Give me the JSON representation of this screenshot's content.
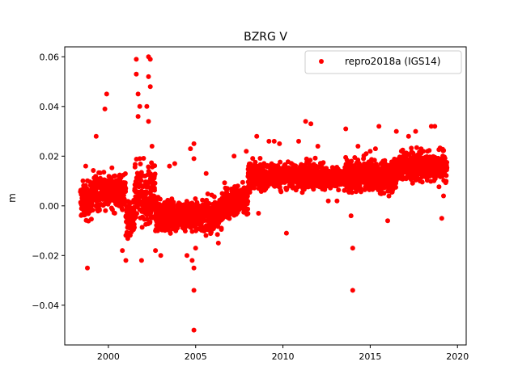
{
  "chart_data": {
    "type": "scatter",
    "title": "BZRG V",
    "xlabel": "",
    "ylabel": "m",
    "xlim": [
      1997.5,
      2020.5
    ],
    "ylim": [
      -0.056,
      0.064
    ],
    "xticks": [
      2000,
      2005,
      2010,
      2015,
      2020
    ],
    "yticks": [
      -0.04,
      -0.02,
      0.0,
      0.02,
      0.04,
      0.06
    ],
    "xtick_labels": [
      "2000",
      "2005",
      "2010",
      "2015",
      "2020"
    ],
    "ytick_labels": [
      "−0.04",
      "−0.02",
      "0.00",
      "0.02",
      "0.04",
      "0.06"
    ],
    "grid": false,
    "legend": {
      "position": "top-right",
      "entries": [
        "repro2018a (IGS14)"
      ]
    },
    "series": [
      {
        "name": "repro2018a (IGS14)",
        "color": "#ff0000",
        "marker": "circle",
        "trend_segments": [
          {
            "x": [
              1998.4,
              1999.1
            ],
            "mean": 0.002,
            "spread": 0.007
          },
          {
            "x": [
              1999.1,
              2001.0
            ],
            "mean": 0.006,
            "spread": 0.007
          },
          {
            "x": [
              2001.0,
              2001.5
            ],
            "mean": -0.006,
            "spread": 0.007
          },
          {
            "x": [
              2001.5,
              2002.7
            ],
            "mean": 0.004,
            "spread": 0.012
          },
          {
            "x": [
              2002.7,
              2004.0
            ],
            "mean": -0.004,
            "spread": 0.006
          },
          {
            "x": [
              2004.0,
              2006.5
            ],
            "mean": -0.004,
            "spread": 0.006
          },
          {
            "x": [
              2006.5,
              2008.0
            ],
            "mean": 0.002,
            "spread": 0.006
          },
          {
            "x": [
              2008.0,
              2012.5
            ],
            "mean": 0.012,
            "spread": 0.005
          },
          {
            "x": [
              2012.5,
              2013.5
            ],
            "mean": 0.011,
            "spread": 0.004
          },
          {
            "x": [
              2013.5,
              2016.5
            ],
            "mean": 0.012,
            "spread": 0.006
          },
          {
            "x": [
              2016.5,
              2019.4
            ],
            "mean": 0.016,
            "spread": 0.006
          }
        ],
        "points": [
          [
            1998.7,
            0.016
          ],
          [
            1998.8,
            -0.025
          ],
          [
            1999.3,
            0.028
          ],
          [
            1999.9,
            0.045
          ],
          [
            1999.8,
            0.039
          ],
          [
            2000.8,
            -0.018
          ],
          [
            2001.0,
            -0.022
          ],
          [
            2001.6,
            0.059
          ],
          [
            2001.6,
            0.053
          ],
          [
            2001.7,
            0.045
          ],
          [
            2001.8,
            0.04
          ],
          [
            2001.7,
            0.036
          ],
          [
            2001.9,
            -0.022
          ],
          [
            2002.3,
            0.06
          ],
          [
            2002.4,
            0.059
          ],
          [
            2002.3,
            0.052
          ],
          [
            2002.4,
            0.048
          ],
          [
            2002.2,
            0.04
          ],
          [
            2002.3,
            0.034
          ],
          [
            2002.5,
            0.024
          ],
          [
            2002.7,
            -0.018
          ],
          [
            2003.0,
            -0.02
          ],
          [
            2003.5,
            0.016
          ],
          [
            2003.8,
            0.017
          ],
          [
            2004.5,
            -0.02
          ],
          [
            2004.7,
            0.023
          ],
          [
            2004.9,
            0.025
          ],
          [
            2004.9,
            0.019
          ],
          [
            2004.8,
            -0.022
          ],
          [
            2004.9,
            -0.025
          ],
          [
            2004.9,
            -0.034
          ],
          [
            2004.9,
            -0.05
          ],
          [
            2005.0,
            -0.017
          ],
          [
            2005.6,
            0.013
          ],
          [
            2006.3,
            -0.015
          ],
          [
            2007.2,
            0.02
          ],
          [
            2007.9,
            0.022
          ],
          [
            2008.5,
            0.028
          ],
          [
            2008.6,
            -0.003
          ],
          [
            2009.2,
            0.026
          ],
          [
            2009.5,
            0.026
          ],
          [
            2009.8,
            0.025
          ],
          [
            2010.2,
            -0.011
          ],
          [
            2010.9,
            0.026
          ],
          [
            2011.3,
            0.034
          ],
          [
            2011.6,
            0.033
          ],
          [
            2012.0,
            0.024
          ],
          [
            2012.6,
            0.002
          ],
          [
            2013.1,
            0.002
          ],
          [
            2013.6,
            0.031
          ],
          [
            2013.9,
            -0.004
          ],
          [
            2014.0,
            -0.034
          ],
          [
            2014.0,
            -0.017
          ],
          [
            2014.3,
            0.024
          ],
          [
            2015.0,
            0.022
          ],
          [
            2015.3,
            0.023
          ],
          [
            2015.5,
            0.032
          ],
          [
            2016.0,
            -0.006
          ],
          [
            2016.5,
            0.03
          ],
          [
            2017.2,
            0.028
          ],
          [
            2017.6,
            0.03
          ],
          [
            2018.5,
            0.032
          ],
          [
            2018.7,
            0.032
          ],
          [
            2019.1,
            -0.005
          ],
          [
            2019.2,
            0.004
          ]
        ]
      }
    ]
  }
}
